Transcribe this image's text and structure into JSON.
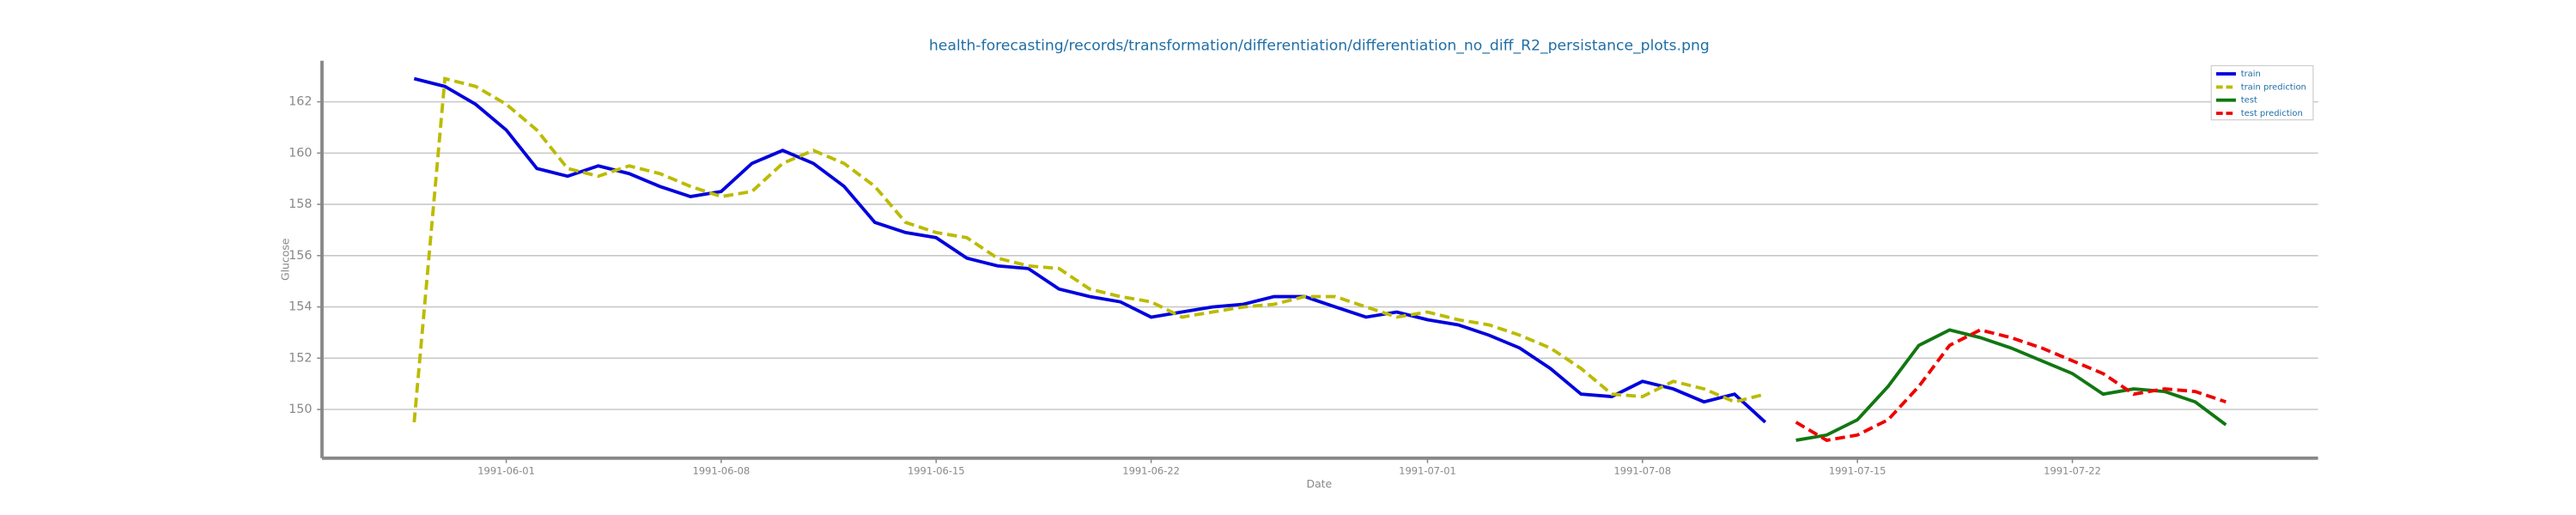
{
  "chart_data": {
    "type": "line",
    "title": "health-forecasting/records/transformation/differentiation/differentiation_no_diff_R2_persistance_plots.png",
    "xlabel": "Date",
    "ylabel": "Glucose",
    "xlim": [
      "1991-05-26",
      "1991-07-30"
    ],
    "ylim": [
      148.1,
      163.6
    ],
    "xticks": [
      "1991-06-01",
      "1991-06-08",
      "1991-06-15",
      "1991-06-22",
      "1991-07-01",
      "1991-07-08",
      "1991-07-15",
      "1991-07-22"
    ],
    "yticks": [
      150,
      152,
      154,
      156,
      158,
      160,
      162
    ],
    "grid": true,
    "legend": "upper right",
    "series": [
      {
        "name": "train",
        "color": "#0000dd",
        "dash": false,
        "x": [
          "1991-05-29",
          "1991-05-30",
          "1991-05-31",
          "1991-06-01",
          "1991-06-02",
          "1991-06-03",
          "1991-06-04",
          "1991-06-05",
          "1991-06-06",
          "1991-06-07",
          "1991-06-08",
          "1991-06-09",
          "1991-06-10",
          "1991-06-11",
          "1991-06-12",
          "1991-06-13",
          "1991-06-14",
          "1991-06-15",
          "1991-06-16",
          "1991-06-17",
          "1991-06-18",
          "1991-06-19",
          "1991-06-20",
          "1991-06-21",
          "1991-06-22",
          "1991-06-23",
          "1991-06-24",
          "1991-06-25",
          "1991-06-26",
          "1991-06-27",
          "1991-06-28",
          "1991-06-29",
          "1991-06-30",
          "1991-07-01",
          "1991-07-02",
          "1991-07-03",
          "1991-07-04",
          "1991-07-05",
          "1991-07-06",
          "1991-07-07",
          "1991-07-08",
          "1991-07-09",
          "1991-07-10",
          "1991-07-11",
          "1991-07-12"
        ],
        "values": [
          162.9,
          162.6,
          161.9,
          160.9,
          159.4,
          159.1,
          159.5,
          159.2,
          158.7,
          158.3,
          158.5,
          159.6,
          160.1,
          159.6,
          158.7,
          157.3,
          156.9,
          156.7,
          155.9,
          155.6,
          155.5,
          154.7,
          154.4,
          154.2,
          153.6,
          153.8,
          154.0,
          154.1,
          154.4,
          154.4,
          154.0,
          153.6,
          153.8,
          153.5,
          153.3,
          152.9,
          152.4,
          151.6,
          150.6,
          150.5,
          151.1,
          150.8,
          150.3,
          150.6,
          149.5
        ]
      },
      {
        "name": "train prediction",
        "color": "#bbbb00",
        "dash": true,
        "x": [
          "1991-05-29",
          "1991-05-30",
          "1991-05-31",
          "1991-06-01",
          "1991-06-02",
          "1991-06-03",
          "1991-06-04",
          "1991-06-05",
          "1991-06-06",
          "1991-06-07",
          "1991-06-08",
          "1991-06-09",
          "1991-06-10",
          "1991-06-11",
          "1991-06-12",
          "1991-06-13",
          "1991-06-14",
          "1991-06-15",
          "1991-06-16",
          "1991-06-17",
          "1991-06-18",
          "1991-06-19",
          "1991-06-20",
          "1991-06-21",
          "1991-06-22",
          "1991-06-23",
          "1991-06-24",
          "1991-06-25",
          "1991-06-26",
          "1991-06-27",
          "1991-06-28",
          "1991-06-29",
          "1991-06-30",
          "1991-07-01",
          "1991-07-02",
          "1991-07-03",
          "1991-07-04",
          "1991-07-05",
          "1991-07-06",
          "1991-07-07",
          "1991-07-08",
          "1991-07-09",
          "1991-07-10",
          "1991-07-11",
          "1991-07-12"
        ],
        "values": [
          149.5,
          162.9,
          162.6,
          161.9,
          160.9,
          159.4,
          159.1,
          159.5,
          159.2,
          158.7,
          158.3,
          158.5,
          159.6,
          160.1,
          159.6,
          158.7,
          157.3,
          156.9,
          156.7,
          155.9,
          155.6,
          155.5,
          154.7,
          154.4,
          154.2,
          153.6,
          153.8,
          154.0,
          154.1,
          154.4,
          154.4,
          154.0,
          153.6,
          153.8,
          153.5,
          153.3,
          152.9,
          152.4,
          151.6,
          150.6,
          150.5,
          151.1,
          150.8,
          150.3,
          150.6
        ]
      },
      {
        "name": "test",
        "color": "#117711",
        "dash": false,
        "x": [
          "1991-07-13",
          "1991-07-14",
          "1991-07-15",
          "1991-07-16",
          "1991-07-17",
          "1991-07-18",
          "1991-07-19",
          "1991-07-20",
          "1991-07-21",
          "1991-07-22",
          "1991-07-23",
          "1991-07-24",
          "1991-07-25",
          "1991-07-26",
          "1991-07-27"
        ],
        "values": [
          148.8,
          149.0,
          149.6,
          150.9,
          152.5,
          153.1,
          152.8,
          152.4,
          151.9,
          151.4,
          150.6,
          150.8,
          150.7,
          150.3,
          149.4
        ]
      },
      {
        "name": "test prediction",
        "color": "#ee0000",
        "dash": true,
        "x": [
          "1991-07-13",
          "1991-07-14",
          "1991-07-15",
          "1991-07-16",
          "1991-07-17",
          "1991-07-18",
          "1991-07-19",
          "1991-07-20",
          "1991-07-21",
          "1991-07-22",
          "1991-07-23",
          "1991-07-24",
          "1991-07-25",
          "1991-07-26",
          "1991-07-27"
        ],
        "values": [
          149.5,
          148.8,
          149.0,
          149.6,
          150.9,
          152.5,
          153.1,
          152.8,
          152.4,
          151.9,
          151.4,
          150.6,
          150.8,
          150.7,
          150.3
        ]
      }
    ]
  }
}
